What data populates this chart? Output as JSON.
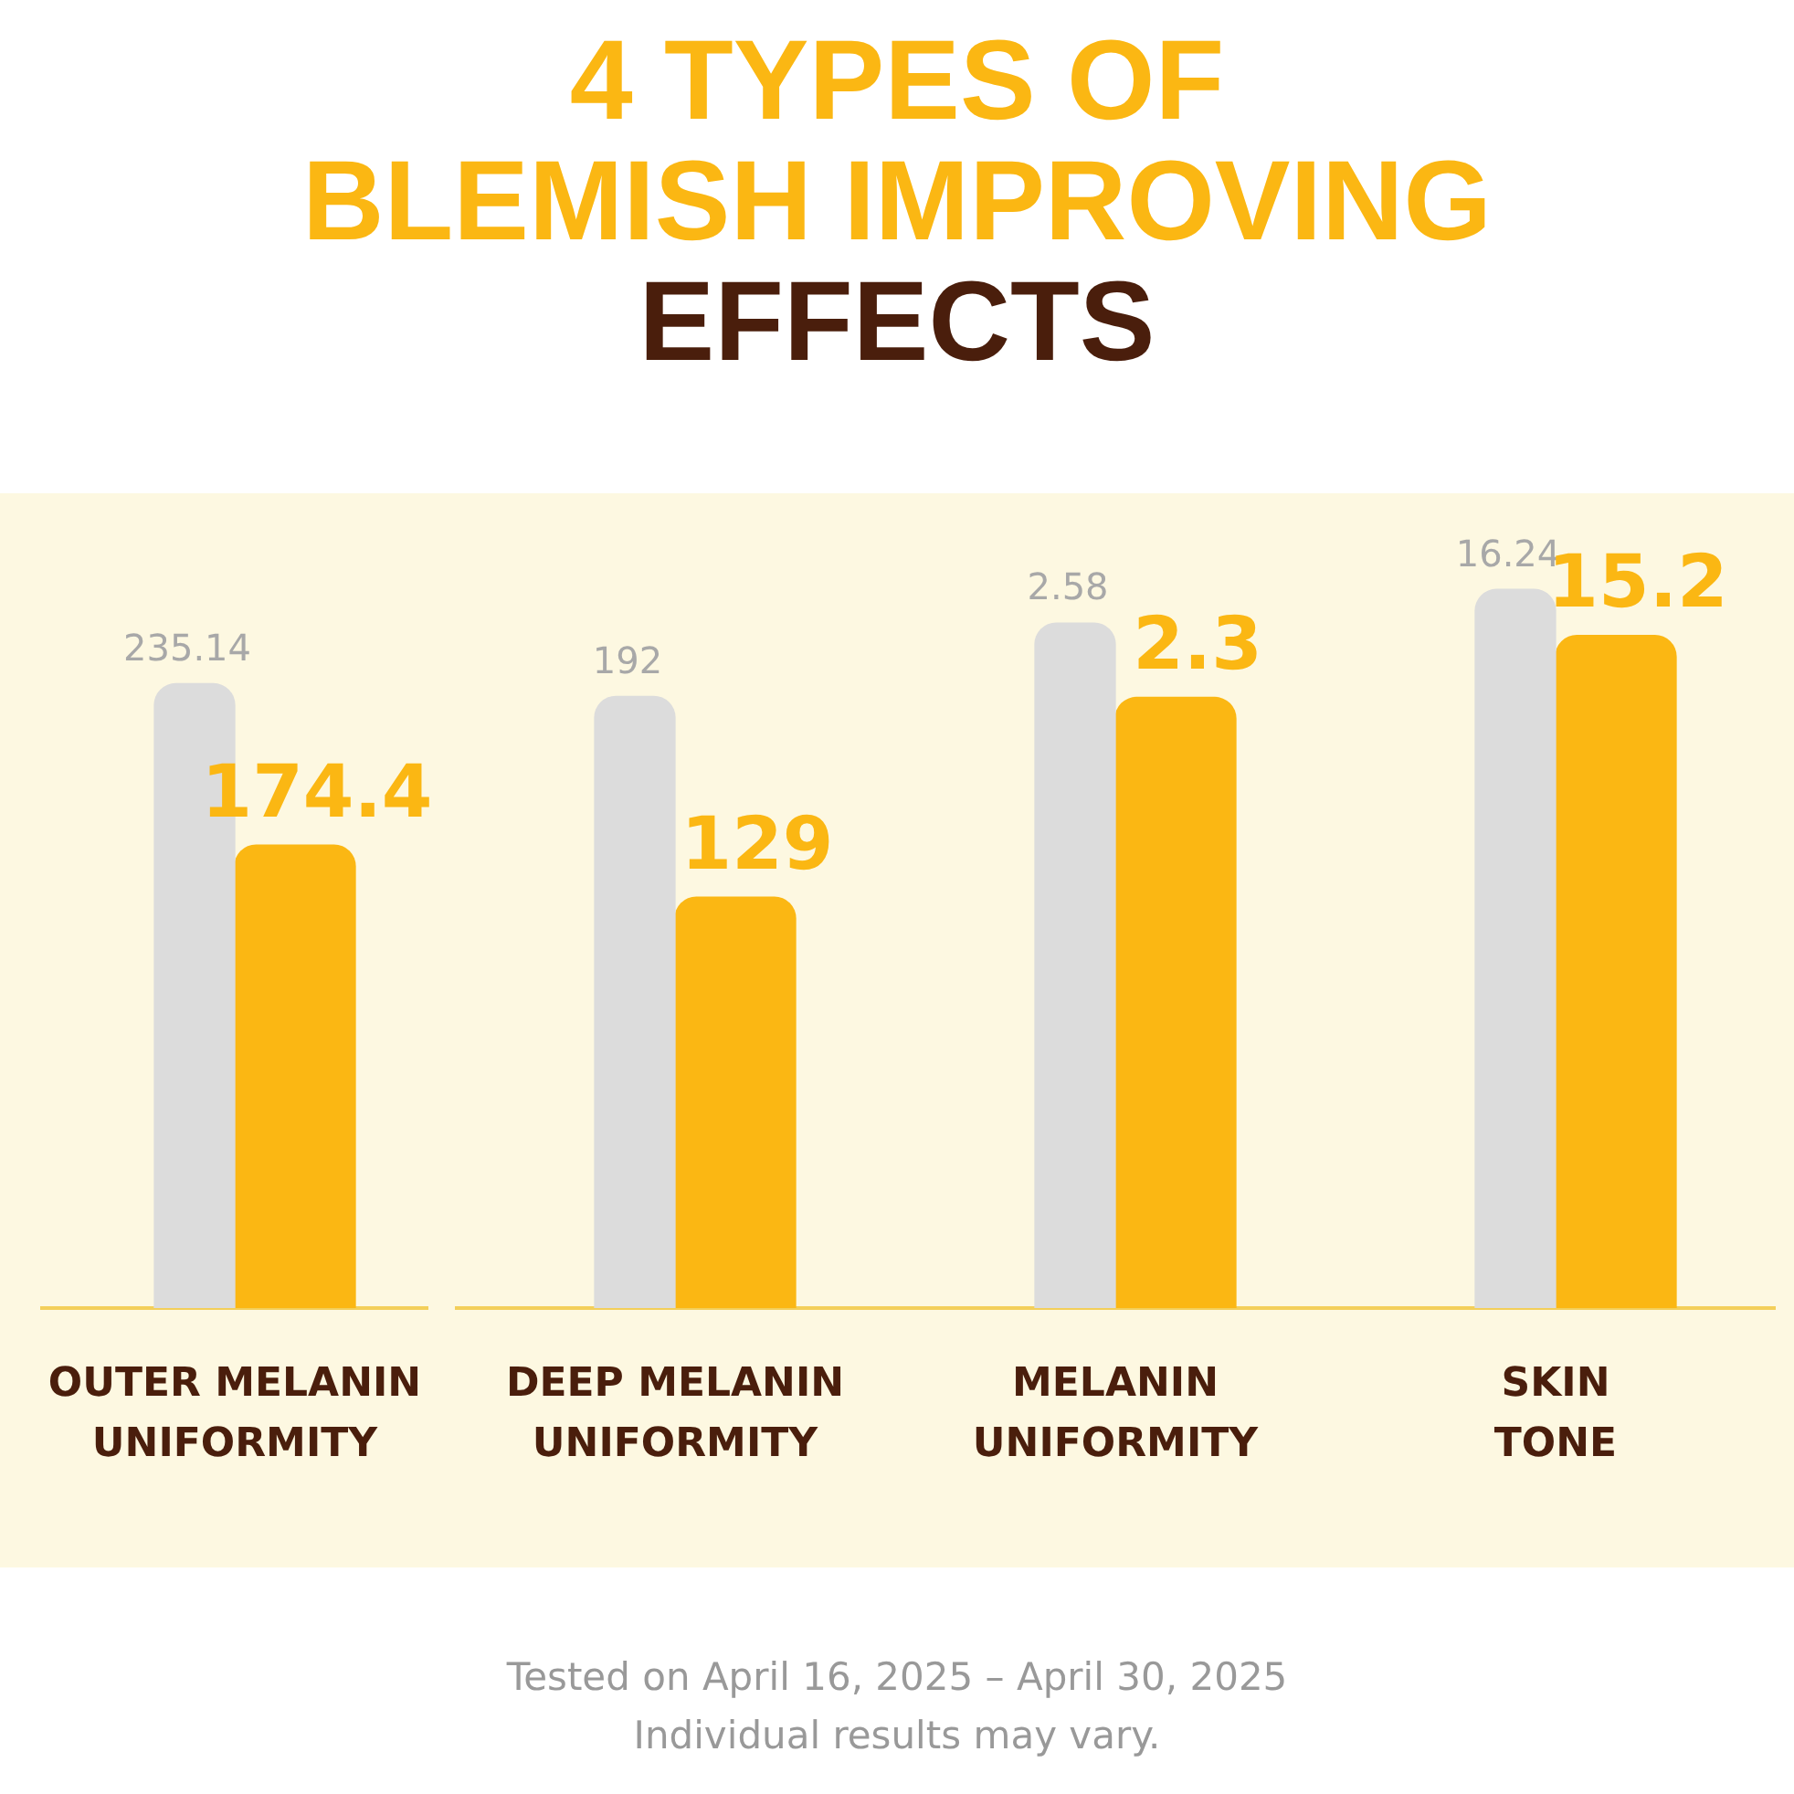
{
  "chart_data": [
    {
      "type": "bar",
      "title": "4 TYPES OF\nBLEMISH IMPROVING\nEFFECTS",
      "categories": [
        "OUTER MELANIN UNIFORMITY"
      ],
      "series": [
        {
          "color": "#dcdcdc",
          "values": [
            235.14
          ]
        },
        {
          "color": "#fbb713",
          "values": [
            174.4
          ]
        }
      ],
      "tick_labels": "x",
      "grid": false,
      "legend": false,
      "data_labels": true,
      "annotations": [
        "Tested on April 16, 2025 – April 30, 2025",
        "Individual results may vary."
      ]
    },
    {
      "type": "bar",
      "categories": [
        "DEEP MELANIN UNIFORMITY"
      ],
      "series": [
        {
          "color": "#dcdcdc",
          "values": [
            192
          ]
        },
        {
          "color": "#fbb713",
          "values": [
            129
          ]
        }
      ],
      "tick_labels": "x",
      "grid": false,
      "legend": false,
      "data_labels": true
    },
    {
      "type": "bar",
      "categories": [
        "MELANIN UNIFORMITY"
      ],
      "series": [
        {
          "color": "#dcdcdc",
          "values": [
            2.58
          ]
        },
        {
          "color": "#fbb713",
          "values": [
            2.3
          ]
        }
      ],
      "tick_labels": "x",
      "grid": false,
      "legend": false,
      "data_labels": true
    },
    {
      "type": "bar",
      "categories": [
        "SKIN TONE"
      ],
      "series": [
        {
          "color": "#dcdcdc",
          "values": [
            16.24
          ]
        },
        {
          "color": "#fbb713",
          "values": [
            15.2
          ]
        }
      ],
      "tick_labels": "x",
      "grid": false,
      "legend": false,
      "data_labels": true
    }
  ]
}
